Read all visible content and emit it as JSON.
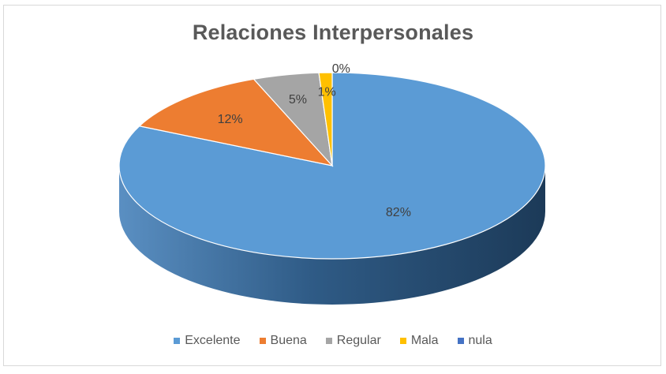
{
  "chart_data": {
    "type": "pie",
    "title": "Relaciones Interpersonales",
    "categories": [
      "Excelente",
      "Buena",
      "Regular",
      "Mala",
      "nula"
    ],
    "values": [
      82,
      12,
      5,
      1,
      0
    ],
    "labels": [
      "82%",
      "12%",
      "5%",
      "1%",
      "0%"
    ],
    "colors": [
      "#5B9BD5",
      "#ED7D31",
      "#A5A5A5",
      "#FFC000",
      "#4472C4"
    ],
    "legend": "bottom",
    "style": "3d"
  }
}
